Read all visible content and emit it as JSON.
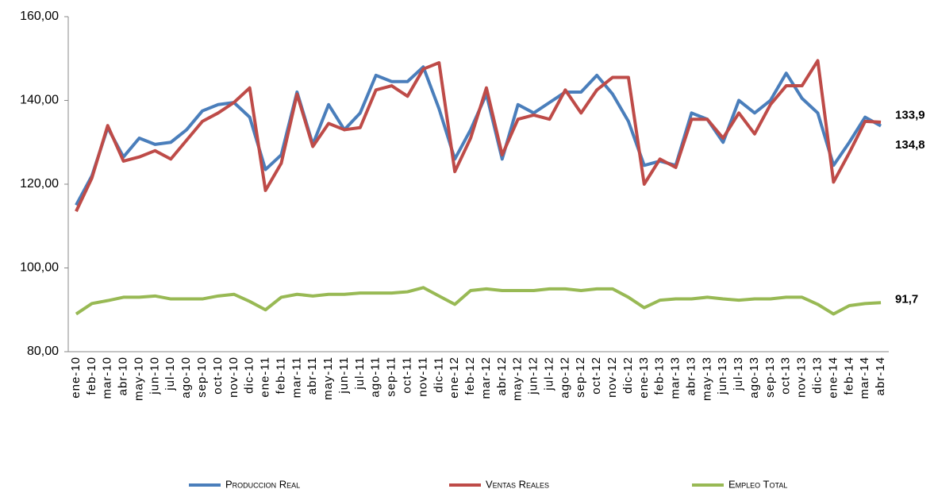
{
  "chart_data": {
    "type": "line",
    "categories": [
      "ene-10",
      "feb-10",
      "mar-10",
      "abr-10",
      "may-10",
      "jun-10",
      "jul-10",
      "ago-10",
      "sep-10",
      "oct-10",
      "nov-10",
      "dic-10",
      "ene-11",
      "feb-11",
      "mar-11",
      "abr-11",
      "may-11",
      "jun-11",
      "jul-11",
      "ago-11",
      "sep-11",
      "oct-11",
      "nov-11",
      "dic-11",
      "ene-12",
      "feb-12",
      "mar-12",
      "abr-12",
      "may-12",
      "jun-12",
      "jul-12",
      "ago-12",
      "sep-12",
      "oct-12",
      "nov-12",
      "dic-12",
      "ene-13",
      "feb-13",
      "mar-13",
      "abr-13",
      "may-13",
      "jun-13",
      "jul-13",
      "ago-13",
      "sep-13",
      "oct-13",
      "nov-13",
      "dic-13",
      "ene-14",
      "feb-14",
      "mar-14",
      "abr-14"
    ],
    "series": [
      {
        "name": "Produccion Real",
        "color": "#4a7ebb",
        "values": [
          115,
          122,
          133.5,
          126.5,
          131,
          129.5,
          130,
          133,
          137.5,
          139,
          139.5,
          136,
          123.5,
          127,
          142,
          129.5,
          139,
          133,
          137,
          146,
          144.5,
          144.5,
          148,
          138,
          126,
          133,
          141.5,
          126,
          139,
          137,
          139.5,
          142,
          142,
          146,
          141.5,
          135,
          124.5,
          125.5,
          124.5,
          137,
          135.5,
          130,
          140,
          137,
          140,
          146.5,
          140.5,
          137,
          124.5,
          130,
          136,
          133.9
        ],
        "value_labels": [
          null,
          null,
          null,
          null,
          null,
          null,
          null,
          null,
          null,
          null,
          null,
          null,
          null,
          null,
          null,
          null,
          null,
          null,
          null,
          null,
          null,
          null,
          null,
          null,
          null,
          null,
          null,
          null,
          null,
          null,
          null,
          null,
          null,
          null,
          null,
          null,
          null,
          null,
          null,
          null,
          null,
          null,
          null,
          null,
          null,
          null,
          null,
          null,
          null,
          null,
          null,
          "133,9"
        ],
        "label_color": "#1f1fd6"
      },
      {
        "name": "Ventas Reales",
        "color": "#be4b48",
        "values": [
          113.5,
          121.5,
          134,
          125.5,
          126.5,
          128,
          126,
          130.5,
          135,
          137,
          139.5,
          143,
          118.5,
          125,
          141.5,
          129,
          134.5,
          133,
          133.5,
          142.5,
          143.5,
          141,
          147.5,
          149,
          123,
          131,
          143,
          127,
          135.5,
          136.5,
          135.5,
          142.5,
          137,
          142.5,
          145.5,
          145.5,
          120,
          126,
          124,
          135.5,
          135.5,
          131,
          137,
          132,
          139,
          143.5,
          143.5,
          149.5,
          120.5,
          127.5,
          135,
          134.8
        ],
        "value_labels": [
          null,
          null,
          null,
          null,
          null,
          null,
          null,
          null,
          null,
          null,
          null,
          null,
          null,
          null,
          null,
          null,
          null,
          null,
          null,
          null,
          null,
          null,
          null,
          null,
          null,
          null,
          null,
          null,
          null,
          null,
          null,
          null,
          null,
          null,
          null,
          null,
          null,
          null,
          null,
          null,
          null,
          null,
          null,
          null,
          null,
          null,
          null,
          null,
          null,
          null,
          null,
          "134,8"
        ],
        "label_color": "#e0191f"
      },
      {
        "name": "Empleo Total",
        "color": "#98b954",
        "values": [
          89,
          91.5,
          92.2,
          93,
          93,
          93.3,
          92.6,
          92.6,
          92.6,
          93.3,
          93.7,
          92,
          90,
          93,
          93.7,
          93.3,
          93.7,
          93.7,
          94,
          94,
          94,
          94.3,
          95.3,
          93.3,
          91.3,
          94.6,
          95,
          94.6,
          94.6,
          94.6,
          95,
          95,
          94.6,
          95,
          95,
          93,
          90.5,
          92.3,
          92.6,
          92.6,
          93,
          92.6,
          92.3,
          92.6,
          92.6,
          93,
          93,
          91.3,
          89,
          91,
          91.5,
          91.7
        ],
        "value_labels": [
          null,
          null,
          null,
          null,
          null,
          null,
          null,
          null,
          null,
          null,
          null,
          null,
          null,
          null,
          null,
          null,
          null,
          null,
          null,
          null,
          null,
          null,
          null,
          null,
          null,
          null,
          null,
          null,
          null,
          null,
          null,
          null,
          null,
          null,
          null,
          null,
          null,
          null,
          null,
          null,
          null,
          null,
          null,
          null,
          null,
          null,
          null,
          null,
          null,
          null,
          null,
          "91,7"
        ],
        "label_color": "#77933c"
      }
    ],
    "ylim": [
      80,
      160
    ],
    "yticks": [
      {
        "value": 80,
        "label": "80,00"
      },
      {
        "value": 100,
        "label": "100,00"
      },
      {
        "value": 120,
        "label": "120,00"
      },
      {
        "value": 140,
        "label": "140,00"
      },
      {
        "value": 160,
        "label": "160,00"
      }
    ],
    "grid": false,
    "legend": "bottom"
  }
}
